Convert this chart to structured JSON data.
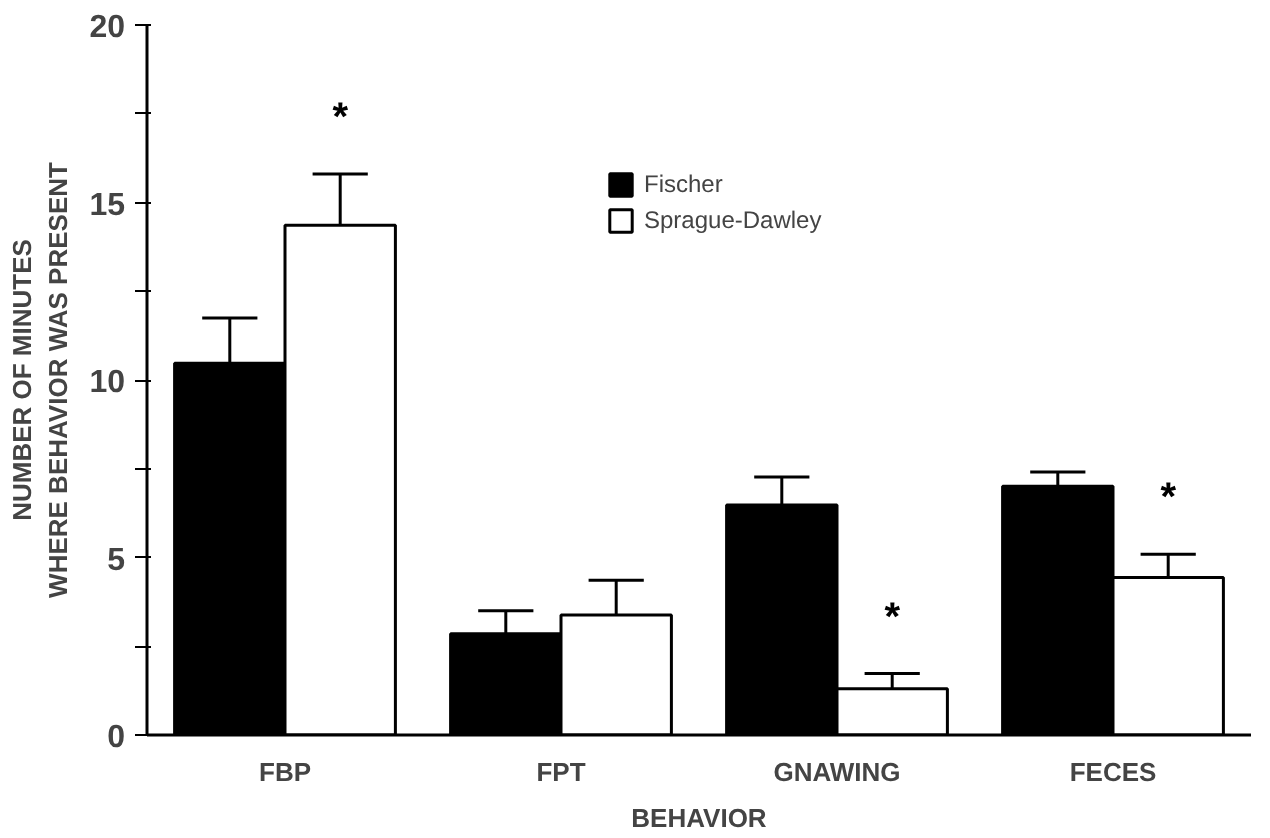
{
  "chart_data": {
    "type": "bar",
    "xlabel": "BEHAVIOR",
    "ylabel": "NUMBER OF MINUTES\nWHERE BEHAVIOR WAS PRESENT",
    "categories": [
      "FBP",
      "FPT",
      "GNAWING",
      "FECES"
    ],
    "series": [
      {
        "name": "Fischer",
        "color": "#000000",
        "values": [
          10.47,
          2.85,
          6.48,
          7.01
        ],
        "errors": [
          [
            10.47,
            11.75
          ],
          [
            2.85,
            3.5
          ],
          [
            6.48,
            7.27
          ],
          [
            7.01,
            7.41
          ]
        ]
      },
      {
        "name": "Sprague-Dawley",
        "color": "#ffffff",
        "values": [
          14.36,
          3.38,
          1.3,
          4.44
        ],
        "value_labels": [
          "*",
          null,
          "*",
          "*"
        ],
        "errors": [
          [
            14.36,
            15.8
          ],
          [
            3.38,
            4.36
          ],
          [
            1.3,
            1.73
          ],
          [
            4.44,
            5.09
          ]
        ]
      }
    ],
    "ylim": [
      0,
      20
    ],
    "yticks": [
      0,
      {
        "value": 2.5,
        "label": null
      },
      5,
      {
        "value": 7.5,
        "label": null
      },
      10,
      {
        "value": 12.5,
        "label": null
      },
      15,
      {
        "value": 17.5,
        "label": null
      },
      20
    ],
    "grid": false,
    "legend": "top"
  }
}
